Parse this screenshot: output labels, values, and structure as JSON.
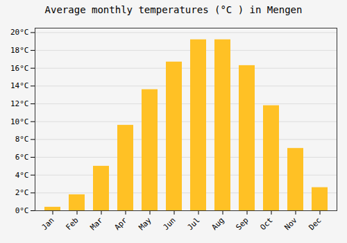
{
  "chart_data": {
    "type": "bar",
    "title": "Average monthly temperatures (°C ) in Mengen",
    "categories": [
      "Jan",
      "Feb",
      "Mar",
      "Apr",
      "May",
      "Jun",
      "Jul",
      "Aug",
      "Sep",
      "Oct",
      "Nov",
      "Dec"
    ],
    "values": [
      0.4,
      1.8,
      5.0,
      9.6,
      13.6,
      16.7,
      19.2,
      19.2,
      16.3,
      11.8,
      7.0,
      2.6
    ],
    "color": "#FFC125",
    "ylim": [
      0,
      20.5
    ],
    "yticks": [
      {
        "value": 0,
        "label": "0°C"
      },
      {
        "value": 2,
        "label": "2°C"
      },
      {
        "value": 4,
        "label": "4°C"
      },
      {
        "value": 6,
        "label": "6°C"
      },
      {
        "value": 8,
        "label": "8°C"
      },
      {
        "value": 10,
        "label": "10°C"
      },
      {
        "value": 12,
        "label": "12°C"
      },
      {
        "value": 14,
        "label": "14°C"
      },
      {
        "value": 16,
        "label": "16°C"
      },
      {
        "value": 18,
        "label": "18°C"
      },
      {
        "value": 20,
        "label": "20°C"
      }
    ],
    "grid": true
  }
}
